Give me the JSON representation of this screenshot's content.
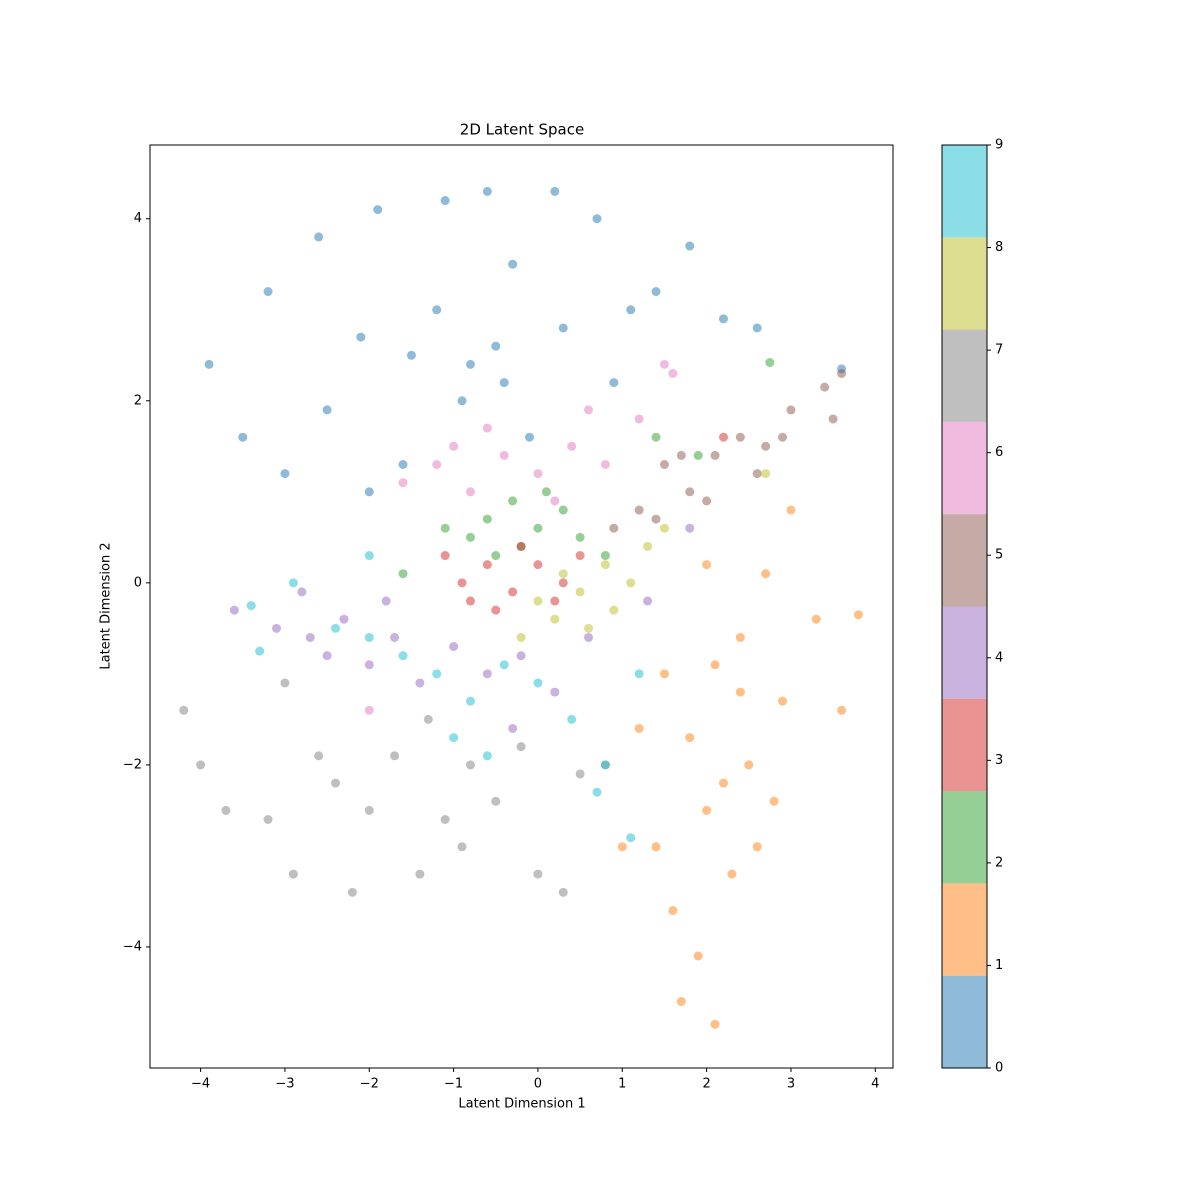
{
  "chart_data": {
    "type": "scatter",
    "title": "2D Latent Space",
    "x_label": "Latent Dimension 1",
    "y_label": "Latent Dimension 2",
    "xlim": [
      -4.6,
      4.21
    ],
    "ylim": [
      -5.33,
      4.81
    ],
    "xticks": [
      {
        "value": -4,
        "label": "−4"
      },
      {
        "value": -3,
        "label": "−3"
      },
      {
        "value": -2,
        "label": "−2"
      },
      {
        "value": -1,
        "label": "−1"
      },
      0,
      1,
      2,
      3,
      4
    ],
    "yticks": [
      {
        "value": -4,
        "label": "−4"
      },
      {
        "value": -2,
        "label": "−2"
      },
      0,
      2,
      4
    ],
    "alpha": 0.5,
    "colorbar": {
      "ylim": [
        0,
        9
      ],
      "yticks": [
        0,
        1,
        2,
        3,
        4,
        5,
        6,
        7,
        8,
        9
      ]
    },
    "series": [
      {
        "color": "#1f77b4",
        "x": [
          -3.9,
          -3.5,
          -3.2,
          -2.6,
          -2.5,
          -2.1,
          -1.9,
          -1.6,
          -1.2,
          -1.1,
          -0.9,
          -0.6,
          -0.5,
          -0.3,
          -0.1,
          0.2,
          0.3,
          0.7,
          0.9,
          1.4,
          1.8,
          2.2,
          2.6,
          3.6,
          -3.0,
          -2.0,
          -0.8,
          -0.4,
          1.1,
          -1.5
        ],
        "values": [
          2.4,
          1.6,
          3.2,
          3.8,
          1.9,
          2.7,
          4.1,
          1.3,
          3.0,
          4.2,
          2.0,
          4.3,
          2.6,
          3.5,
          1.6,
          4.3,
          2.8,
          4.0,
          2.2,
          3.2,
          3.7,
          2.9,
          2.8,
          2.35,
          1.2,
          1.0,
          2.4,
          2.2,
          3.0,
          2.5
        ]
      },
      {
        "color": "#ff7f0e",
        "x": [
          2.1,
          1.9,
          1.6,
          2.3,
          1.4,
          2.0,
          2.5,
          1.8,
          2.9,
          1.5,
          2.4,
          3.3,
          2.7,
          2.0,
          3.0,
          3.8,
          1.2,
          2.2,
          2.6,
          1.0,
          3.6,
          1.7,
          2.4,
          2.1,
          2.8
        ],
        "values": [
          -4.85,
          -4.1,
          -3.6,
          -3.2,
          -2.9,
          -2.5,
          -2.0,
          -1.7,
          -1.3,
          -1.0,
          -0.6,
          -0.4,
          0.1,
          0.2,
          0.8,
          -0.35,
          -1.6,
          -2.2,
          -2.9,
          -2.9,
          -1.4,
          -4.6,
          -1.2,
          -0.9,
          -2.4
        ]
      },
      {
        "color": "#2ca02c",
        "x": [
          -0.6,
          -0.3,
          0.0,
          0.3,
          -0.8,
          0.5,
          -0.2,
          0.1,
          -1.1,
          1.4,
          2.75,
          -1.6,
          0.8,
          -0.5,
          1.9
        ],
        "values": [
          0.7,
          0.9,
          0.6,
          0.8,
          0.5,
          0.5,
          0.4,
          1.0,
          0.6,
          1.6,
          2.42,
          0.1,
          0.3,
          0.3,
          1.4
        ]
      },
      {
        "color": "#d62728",
        "x": [
          -0.9,
          -0.6,
          -0.3,
          0.0,
          0.3,
          -0.5,
          -1.1,
          0.5,
          -0.2,
          -0.8,
          2.2,
          0.2
        ],
        "values": [
          0.0,
          0.2,
          -0.1,
          0.2,
          0.0,
          -0.3,
          0.3,
          0.3,
          0.4,
          -0.2,
          1.6,
          -0.2
        ]
      },
      {
        "color": "#9467bd",
        "x": [
          -3.6,
          -3.1,
          -2.7,
          -2.3,
          -2.0,
          -1.7,
          -1.4,
          -1.0,
          -0.6,
          -0.2,
          0.2,
          0.6,
          -2.8,
          -1.8,
          1.3,
          -0.3,
          -2.5,
          1.8
        ],
        "values": [
          -0.3,
          -0.5,
          -0.6,
          -0.4,
          -0.9,
          -0.6,
          -1.1,
          -0.7,
          -1.0,
          -0.8,
          -1.2,
          -0.6,
          -0.1,
          -0.2,
          -0.2,
          -1.6,
          -0.8,
          0.6
        ]
      },
      {
        "color": "#8c564b",
        "x": [
          1.5,
          1.8,
          2.1,
          2.4,
          2.7,
          3.0,
          3.5,
          3.4,
          3.6,
          1.2,
          0.9,
          2.0,
          2.6,
          1.7,
          2.9,
          1.4
        ],
        "values": [
          1.3,
          1.0,
          1.4,
          1.6,
          1.5,
          1.9,
          1.8,
          2.15,
          2.3,
          0.8,
          0.6,
          0.9,
          1.2,
          1.4,
          1.6,
          0.7
        ]
      },
      {
        "color": "#e377c2",
        "x": [
          -1.6,
          -1.2,
          -0.8,
          -0.4,
          0.0,
          0.4,
          0.8,
          1.2,
          1.5,
          -0.6,
          0.2,
          1.6,
          -1.0,
          0.6,
          -2.0
        ],
        "values": [
          1.1,
          1.3,
          1.0,
          1.4,
          1.2,
          1.5,
          1.3,
          1.8,
          2.4,
          1.7,
          0.9,
          2.3,
          1.5,
          1.9,
          -1.4
        ]
      },
      {
        "color": "#7f7f7f",
        "x": [
          -4.2,
          -4.0,
          -3.7,
          -3.2,
          -2.9,
          -2.6,
          -2.2,
          -2.0,
          -1.7,
          -1.4,
          -1.1,
          -0.8,
          -0.5,
          -0.2,
          0.0,
          0.3,
          0.5,
          -1.3,
          -3.0,
          -0.9,
          0.8,
          -2.4
        ],
        "values": [
          -1.4,
          -2.0,
          -2.5,
          -2.6,
          -3.2,
          -1.9,
          -3.4,
          -2.5,
          -1.9,
          -3.2,
          -2.6,
          -2.0,
          -2.4,
          -1.8,
          -3.2,
          -3.4,
          -2.1,
          -1.5,
          -1.1,
          -2.9,
          -2.0,
          -2.2
        ]
      },
      {
        "color": "#bcbd22",
        "x": [
          0.2,
          0.5,
          0.8,
          1.1,
          0.6,
          0.3,
          0.9,
          1.3,
          -0.2,
          1.5,
          2.7,
          0.0
        ],
        "values": [
          -0.4,
          -0.1,
          0.2,
          0.0,
          -0.5,
          0.1,
          -0.3,
          0.4,
          -0.6,
          0.6,
          1.2,
          -0.2
        ]
      },
      {
        "color": "#17becf",
        "x": [
          -3.3,
          -2.9,
          -2.4,
          -2.0,
          -1.6,
          -1.2,
          -0.8,
          -0.4,
          0.0,
          0.4,
          -1.0,
          -0.6,
          0.8,
          1.1,
          0.7,
          -3.4,
          -2.0,
          1.2
        ],
        "values": [
          -0.75,
          0.0,
          -0.5,
          -0.6,
          -0.8,
          -1.0,
          -1.3,
          -0.9,
          -1.1,
          -1.5,
          -1.7,
          -1.9,
          -2.0,
          -2.8,
          -2.3,
          -0.25,
          0.3,
          -1.0
        ]
      }
    ]
  }
}
